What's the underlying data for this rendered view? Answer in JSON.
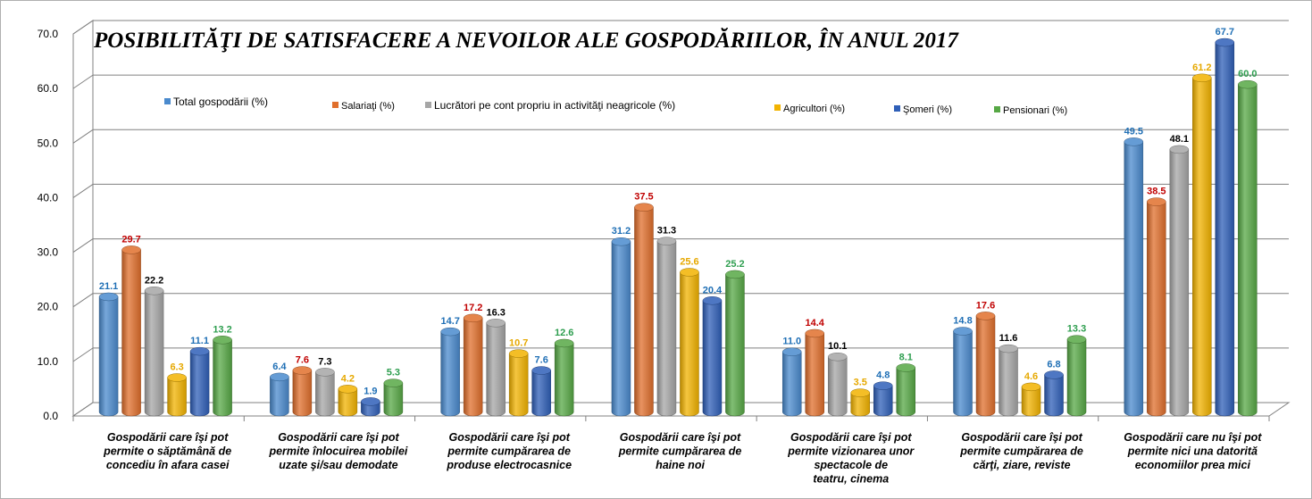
{
  "chart_data": {
    "type": "bar",
    "title": "POSIBILITĂŢI DE SATISFACERE A NEVOILOR ALE GOSPODĂRIILOR, ÎN ANUL 2017",
    "ylim": [
      0,
      70
    ],
    "yticks": [
      "0.0",
      "10.0",
      "20.0",
      "30.0",
      "40.0",
      "50.0",
      "60.0",
      "70.0"
    ],
    "grid": true,
    "legend_position": "top",
    "categories": [
      [
        "Gospodării care îşi pot",
        "permite o săptămână  de",
        "concediu   în afara casei"
      ],
      [
        "Gospodării care îşi pot",
        "permite înlocuirea mobilei",
        "uzate şi/sau demodate"
      ],
      [
        "Gospodării care îşi pot",
        "permite cumpărarea  de",
        "produse electrocasnice"
      ],
      [
        "Gospodării care îşi pot",
        "permite cumpărarea de",
        "haine noi"
      ],
      [
        "Gospodării care îşi pot",
        "permite vizionarea unor",
        "spectacole  de",
        "teatru,    cinema"
      ],
      [
        "Gospodării care îşi pot",
        "permite cumpărarea  de",
        "cărţi, ziare, reviste"
      ],
      [
        "Gospodării care nu îşi pot",
        "permite nici una datorită",
        "economiilor prea mici"
      ]
    ],
    "series": [
      {
        "name": "Total gospodării (%)",
        "color": "#4A8ACD",
        "label_color": "#1F6FB5",
        "values": [
          21.1,
          6.4,
          14.7,
          31.2,
          11.0,
          14.8,
          49.5
        ],
        "labels": [
          "21.1",
          "6.4",
          "14.7",
          "31.2",
          "11.0",
          "14.8",
          "49.5"
        ]
      },
      {
        "name": "Salariaţi (%)",
        "color": "#E06F2C",
        "label_color": "#C00000",
        "values": [
          29.7,
          7.6,
          17.2,
          37.5,
          14.4,
          17.6,
          38.5
        ],
        "labels": [
          "29.7",
          "7.6",
          "17.2",
          "37.5",
          "14.4",
          "17.6",
          "38.5"
        ]
      },
      {
        "name": "Lucrători pe cont propriu in activităţi neagricole  (%)",
        "color": "#A6A6A6",
        "label_color": "#000000",
        "values": [
          22.2,
          7.3,
          16.3,
          31.3,
          10.1,
          11.6,
          48.1
        ],
        "labels": [
          "22.2",
          "7.3",
          "16.3",
          "31.3",
          "10.1",
          "11.6",
          "48.1"
        ]
      },
      {
        "name": "Agricultori (%)",
        "color": "#F2B300",
        "label_color": "#E6A800",
        "values": [
          6.3,
          4.2,
          10.7,
          25.6,
          3.5,
          4.6,
          61.2
        ],
        "labels": [
          "6.3",
          "4.2",
          "10.7",
          "25.6",
          "3.5",
          "4.6",
          "61.2"
        ]
      },
      {
        "name": "Şomeri (%)",
        "color": "#2F5FB8",
        "label_color": "#1F6FB5",
        "values": [
          11.1,
          1.9,
          7.6,
          20.4,
          4.8,
          6.8,
          67.7
        ],
        "labels": [
          "11.1",
          "1.9",
          "7.6",
          "20.4",
          "4.8",
          "6.8",
          "67.7"
        ]
      },
      {
        "name": "Pensionari (%)",
        "color": "#57A845",
        "label_color": "#2E9E4F",
        "values": [
          13.2,
          5.3,
          12.6,
          25.2,
          8.1,
          13.3,
          60.0
        ],
        "labels": [
          "13.2",
          "5.3",
          "12.6",
          "25.2",
          "8.1",
          "13.3",
          "60.0"
        ]
      }
    ]
  }
}
